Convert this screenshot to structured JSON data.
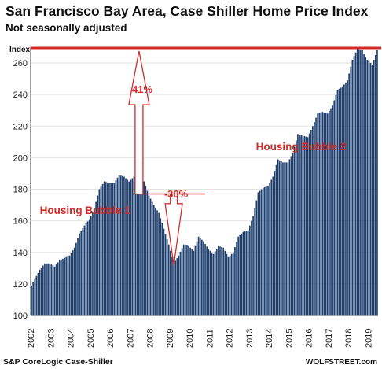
{
  "chart_data": {
    "type": "bar",
    "title": "San Francisco Bay Area, Case Shiller Home Price Index",
    "subtitle": "Not seasonally adjusted",
    "ylabel": "Index",
    "xlabel": "",
    "ylim": [
      100,
      270
    ],
    "yticks": [
      100,
      120,
      140,
      160,
      180,
      200,
      220,
      240,
      260
    ],
    "xticks": [
      "2002",
      "2003",
      "2004",
      "2005",
      "2006",
      "2007",
      "2008",
      "2009",
      "2010",
      "2011",
      "2012",
      "2013",
      "2014",
      "2015",
      "2016",
      "2017",
      "2018",
      "2019"
    ],
    "bar_color": "#1f3f6e",
    "accent_color": "#d42a2a",
    "grid": "horizontal",
    "reference_line": {
      "value": 269.5,
      "color": "#d42a2a"
    },
    "source": "S&P CoreLogic Case-Shiller",
    "brand": "WOLFSTREET.com",
    "annotations": [
      {
        "text": "41%",
        "color": "#d42a2a"
      },
      {
        "text": "-30%",
        "color": "#d42a2a"
      },
      {
        "text": "Housing Bubble 1",
        "color": "#d42a2a"
      },
      {
        "text": "Housing Bubble 2",
        "color": "#d42a2a"
      }
    ],
    "keyframes": [
      [
        "2002-01",
        119
      ],
      [
        "2002-06",
        129
      ],
      [
        "2002-09",
        133
      ],
      [
        "2002-12",
        133
      ],
      [
        "2003-03",
        131
      ],
      [
        "2003-06",
        135
      ],
      [
        "2003-12",
        138
      ],
      [
        "2004-03",
        143
      ],
      [
        "2004-06",
        152
      ],
      [
        "2004-09",
        157
      ],
      [
        "2004-12",
        161
      ],
      [
        "2005-03",
        168
      ],
      [
        "2005-06",
        180
      ],
      [
        "2005-09",
        185
      ],
      [
        "2005-12",
        184
      ],
      [
        "2006-03",
        184
      ],
      [
        "2006-06",
        189
      ],
      [
        "2006-09",
        188
      ],
      [
        "2006-12",
        185
      ],
      [
        "2007-03",
        188
      ],
      [
        "2007-06",
        191
      ],
      [
        "2007-09",
        185
      ],
      [
        "2007-12",
        176
      ],
      [
        "2008-03",
        170
      ],
      [
        "2008-06",
        165
      ],
      [
        "2008-09",
        155
      ],
      [
        "2008-12",
        145
      ],
      [
        "2009-03",
        133
      ],
      [
        "2009-06",
        138
      ],
      [
        "2009-09",
        145
      ],
      [
        "2009-12",
        144
      ],
      [
        "2010-03",
        141
      ],
      [
        "2010-06",
        150
      ],
      [
        "2010-09",
        147
      ],
      [
        "2010-12",
        142
      ],
      [
        "2011-03",
        139
      ],
      [
        "2011-06",
        144
      ],
      [
        "2011-09",
        143
      ],
      [
        "2011-12",
        137
      ],
      [
        "2012-03",
        140
      ],
      [
        "2012-06",
        150
      ],
      [
        "2012-09",
        153
      ],
      [
        "2012-12",
        154
      ],
      [
        "2013-03",
        163
      ],
      [
        "2013-06",
        178
      ],
      [
        "2013-09",
        181
      ],
      [
        "2013-12",
        182
      ],
      [
        "2014-03",
        188
      ],
      [
        "2014-06",
        199
      ],
      [
        "2014-09",
        197
      ],
      [
        "2014-12",
        197
      ],
      [
        "2015-03",
        203
      ],
      [
        "2015-06",
        215
      ],
      [
        "2015-09",
        214
      ],
      [
        "2015-12",
        213
      ],
      [
        "2016-03",
        220
      ],
      [
        "2016-06",
        228
      ],
      [
        "2016-09",
        229
      ],
      [
        "2016-12",
        228
      ],
      [
        "2017-03",
        233
      ],
      [
        "2017-06",
        243
      ],
      [
        "2017-09",
        245
      ],
      [
        "2017-12",
        249
      ],
      [
        "2018-03",
        262
      ],
      [
        "2018-06",
        269
      ],
      [
        "2018-09",
        268
      ],
      [
        "2018-12",
        262
      ],
      [
        "2019-03",
        259
      ],
      [
        "2019-06",
        268
      ]
    ]
  }
}
